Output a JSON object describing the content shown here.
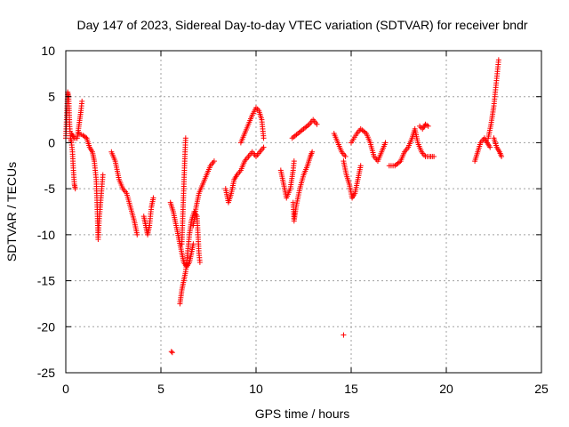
{
  "chart_data": {
    "type": "scatter",
    "title": "Day 147 of 2023, Sidereal Day-to-day VTEC variation (SDTVAR) for receiver bndr",
    "xlabel": "GPS time / hours",
    "ylabel": "SDTVAR / TECUs",
    "xlim": [
      0,
      25
    ],
    "ylim": [
      -25,
      10
    ],
    "xticks": [
      0,
      5,
      10,
      15,
      20,
      25
    ],
    "yticks": [
      10,
      5,
      0,
      -5,
      -10,
      -15,
      -20,
      -25
    ],
    "xtick_labels": [
      "0",
      "5",
      "10",
      "15",
      "20",
      "25"
    ],
    "ytick_labels": [
      "10",
      "5",
      "0",
      "-5",
      "-10",
      "-15",
      "-20",
      "-25"
    ],
    "grid": true,
    "marker": "+",
    "marker_color": "#ff0000",
    "series_polylines": [
      [
        [
          0.0,
          0.5
        ],
        [
          0.05,
          3.0
        ],
        [
          0.1,
          5.5
        ],
        [
          0.15,
          5.0
        ],
        [
          0.2,
          2.0
        ],
        [
          0.25,
          0.5
        ],
        [
          0.3,
          0.0
        ],
        [
          0.35,
          -1.0
        ],
        [
          0.4,
          -3.0
        ],
        [
          0.45,
          -4.5
        ],
        [
          0.5,
          -5.0
        ]
      ],
      [
        [
          0.3,
          1.0
        ],
        [
          0.45,
          0.5
        ],
        [
          0.6,
          0.5
        ],
        [
          0.7,
          2.0
        ],
        [
          0.8,
          3.5
        ],
        [
          0.85,
          4.5
        ]
      ],
      [
        [
          0.7,
          1.0
        ],
        [
          0.9,
          0.8
        ],
        [
          1.1,
          0.5
        ],
        [
          1.25,
          -0.5
        ],
        [
          1.4,
          -1.0
        ],
        [
          1.5,
          -2.0
        ],
        [
          1.6,
          -4.0
        ],
        [
          1.65,
          -7.0
        ],
        [
          1.7,
          -10.5
        ],
        [
          1.75,
          -8.5
        ],
        [
          1.85,
          -6.0
        ],
        [
          1.95,
          -3.5
        ]
      ],
      [
        [
          2.4,
          -1.0
        ],
        [
          2.6,
          -2.0
        ],
        [
          2.8,
          -4.0
        ],
        [
          3.0,
          -5.0
        ],
        [
          3.2,
          -5.5
        ],
        [
          3.4,
          -7.0
        ],
        [
          3.6,
          -8.5
        ],
        [
          3.75,
          -10.0
        ]
      ],
      [
        [
          4.1,
          -8.0
        ],
        [
          4.2,
          -9.0
        ],
        [
          4.3,
          -10.0
        ],
        [
          4.4,
          -9.0
        ],
        [
          4.5,
          -7.0
        ],
        [
          4.6,
          -6.0
        ]
      ],
      [
        [
          5.5,
          -6.5
        ],
        [
          5.65,
          -7.5
        ],
        [
          5.8,
          -9.0
        ],
        [
          5.95,
          -10.5
        ],
        [
          6.1,
          -12.0
        ],
        [
          6.2,
          -13.0
        ],
        [
          6.35,
          -13.5
        ],
        [
          6.5,
          -13.0
        ],
        [
          6.6,
          -12.0
        ],
        [
          6.7,
          -11.0
        ]
      ],
      [
        [
          6.0,
          -17.5
        ],
        [
          6.1,
          -16.0
        ],
        [
          6.2,
          -15.0
        ],
        [
          6.3,
          -14.0
        ],
        [
          6.4,
          -12.0
        ],
        [
          6.5,
          -10.0
        ],
        [
          6.6,
          -8.5
        ],
        [
          6.75,
          -7.5
        ],
        [
          6.9,
          -8.0
        ],
        [
          7.0,
          -12.0
        ],
        [
          7.05,
          -13.0
        ]
      ],
      [
        [
          6.1,
          -11.0
        ],
        [
          6.15,
          -8.0
        ],
        [
          6.2,
          -5.0
        ],
        [
          6.25,
          -2.0
        ],
        [
          6.3,
          0.5
        ]
      ],
      [
        [
          6.7,
          -9.0
        ],
        [
          6.85,
          -7.0
        ],
        [
          7.0,
          -5.5
        ],
        [
          7.2,
          -4.5
        ],
        [
          7.4,
          -3.5
        ],
        [
          7.6,
          -2.5
        ],
        [
          7.8,
          -2.0
        ]
      ],
      [
        [
          8.4,
          -5.0
        ],
        [
          8.55,
          -6.5
        ],
        [
          8.7,
          -5.5
        ],
        [
          8.85,
          -4.0
        ],
        [
          9.0,
          -3.5
        ],
        [
          9.2,
          -3.0
        ],
        [
          9.4,
          -2.0
        ],
        [
          9.6,
          -1.5
        ],
        [
          9.8,
          -1.0
        ],
        [
          10.0,
          -1.5
        ],
        [
          10.2,
          -1.0
        ],
        [
          10.4,
          -0.5
        ]
      ],
      [
        [
          9.2,
          0.0
        ],
        [
          9.4,
          1.0
        ],
        [
          9.6,
          2.0
        ],
        [
          9.8,
          3.0
        ],
        [
          10.0,
          3.8
        ],
        [
          10.15,
          3.5
        ],
        [
          10.3,
          2.5
        ],
        [
          10.4,
          0.5
        ]
      ],
      [
        [
          11.3,
          -3.0
        ],
        [
          11.45,
          -4.5
        ],
        [
          11.6,
          -6.0
        ],
        [
          11.8,
          -5.0
        ],
        [
          11.95,
          -3.0
        ],
        [
          12.0,
          -2.0
        ]
      ],
      [
        [
          11.95,
          -6.5
        ],
        [
          12.0,
          -8.5
        ],
        [
          12.1,
          -7.0
        ],
        [
          12.3,
          -5.0
        ],
        [
          12.5,
          -3.5
        ],
        [
          12.7,
          -2.5
        ],
        [
          12.85,
          -1.5
        ],
        [
          12.95,
          -1.0
        ]
      ],
      [
        [
          11.9,
          0.5
        ],
        [
          12.2,
          1.0
        ],
        [
          12.5,
          1.5
        ],
        [
          12.8,
          2.0
        ],
        [
          13.0,
          2.5
        ],
        [
          13.2,
          2.0
        ]
      ],
      [
        [
          14.1,
          1.0
        ],
        [
          14.3,
          0.0
        ],
        [
          14.5,
          -1.0
        ],
        [
          14.7,
          -1.5
        ]
      ],
      [
        [
          14.6,
          -2.0
        ],
        [
          14.75,
          -3.5
        ],
        [
          14.9,
          -4.5
        ],
        [
          15.05,
          -6.0
        ],
        [
          15.2,
          -5.5
        ],
        [
          15.35,
          -4.0
        ],
        [
          15.5,
          -2.5
        ]
      ],
      [
        [
          15.0,
          0.0
        ],
        [
          15.3,
          1.0
        ],
        [
          15.5,
          1.5
        ],
        [
          15.8,
          1.0
        ],
        [
          16.0,
          0.0
        ],
        [
          16.2,
          -1.5
        ],
        [
          16.4,
          -2.0
        ],
        [
          16.6,
          -1.0
        ],
        [
          16.8,
          0.0
        ]
      ],
      [
        [
          17.0,
          -2.5
        ],
        [
          17.3,
          -2.5
        ],
        [
          17.6,
          -2.0
        ],
        [
          17.8,
          -1.0
        ],
        [
          18.0,
          -0.5
        ],
        [
          18.2,
          0.5
        ],
        [
          18.35,
          1.5
        ],
        [
          18.5,
          0.0
        ],
        [
          18.7,
          -1.0
        ],
        [
          18.9,
          -1.5
        ],
        [
          19.1,
          -1.5
        ],
        [
          19.35,
          -1.5
        ]
      ],
      [
        [
          18.6,
          1.8
        ],
        [
          18.75,
          1.5
        ],
        [
          18.9,
          2.0
        ],
        [
          19.05,
          1.8
        ]
      ],
      [
        [
          21.5,
          -2.0
        ],
        [
          21.65,
          -1.0
        ],
        [
          21.8,
          0.0
        ],
        [
          22.0,
          0.5
        ],
        [
          22.15,
          0.0
        ],
        [
          22.3,
          -0.5
        ]
      ],
      [
        [
          22.2,
          0.5
        ],
        [
          22.35,
          2.0
        ],
        [
          22.5,
          4.0
        ],
        [
          22.6,
          6.0
        ],
        [
          22.7,
          8.0
        ],
        [
          22.75,
          9.0
        ]
      ],
      [
        [
          22.5,
          0.5
        ],
        [
          22.65,
          -0.5
        ],
        [
          22.8,
          -1.0
        ],
        [
          22.9,
          -1.5
        ]
      ]
    ],
    "isolated_points": [
      [
        5.55,
        -22.7
      ],
      [
        5.6,
        -22.8
      ],
      [
        14.6,
        -20.9
      ]
    ]
  }
}
